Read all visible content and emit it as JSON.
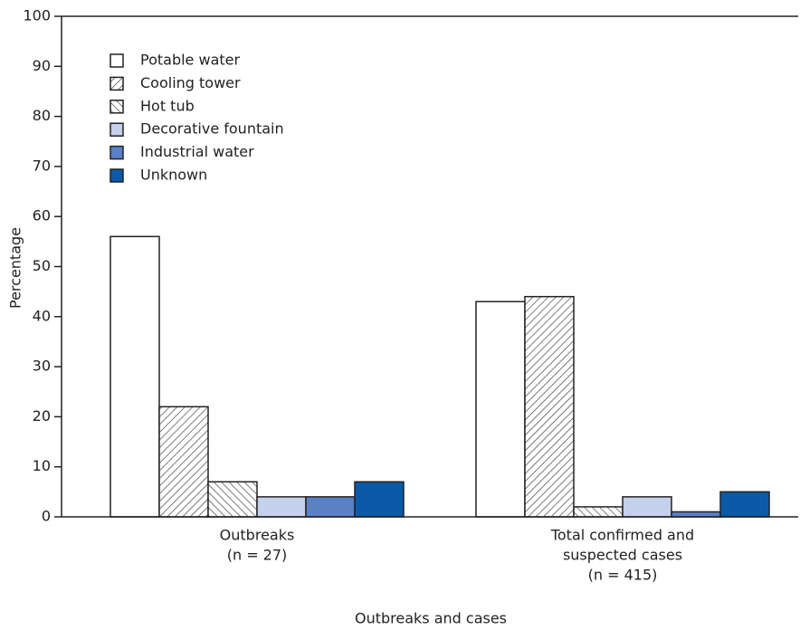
{
  "chart_data": {
    "type": "bar",
    "categories": [
      [
        "Outbreaks",
        "(n = 27)"
      ],
      [
        "Total confirmed and",
        "suspected cases",
        "(n = 415)"
      ]
    ],
    "series": [
      {
        "name": "Potable water",
        "color": "#ffffff",
        "values": [
          56,
          43
        ]
      },
      {
        "name": "Cooling tower",
        "color": "#ffffff",
        "pattern": "forward-hatch",
        "values": [
          22,
          44
        ]
      },
      {
        "name": "Hot tub",
        "color": "#ffffff",
        "pattern": "backward-hatch",
        "values": [
          7,
          2
        ]
      },
      {
        "name": "Decorative fountain",
        "color": "#c5d1ec",
        "values": [
          4,
          4
        ]
      },
      {
        "name": "Industrial water",
        "color": "#5a80c6",
        "values": [
          4,
          1
        ]
      },
      {
        "name": "Unknown",
        "color": "#0b5aa8",
        "values": [
          7,
          5
        ]
      }
    ],
    "ylabel": "Percentage",
    "xlabel": "Outbreaks and cases",
    "ylim": [
      0,
      100
    ],
    "yticks": [
      0,
      10,
      20,
      30,
      40,
      50,
      60,
      70,
      80,
      90,
      100
    ],
    "legend": "upper-left"
  }
}
